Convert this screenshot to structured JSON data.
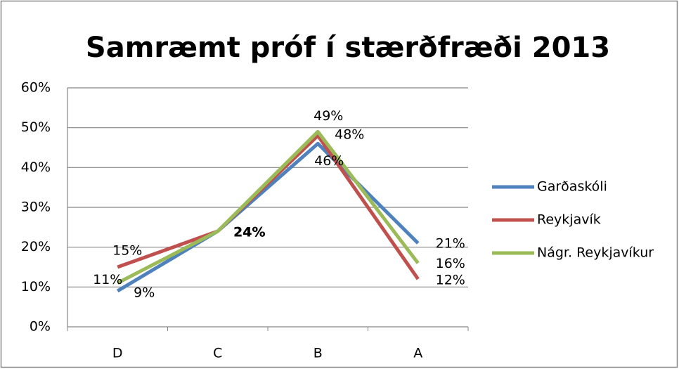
{
  "chart_data": {
    "type": "line",
    "title": "Samræmt próf í stærðfræði 2013",
    "categories": [
      "D",
      "C",
      "B",
      "A"
    ],
    "series": [
      {
        "name": "Garðaskóli",
        "color": "#4f81bd",
        "values": [
          9,
          24,
          46,
          21
        ],
        "value_labels": [
          "9%",
          "24%",
          "46%",
          "21%"
        ]
      },
      {
        "name": "Reykjavík",
        "color": "#c0504d",
        "values": [
          15,
          24,
          48,
          12
        ],
        "value_labels": [
          "15%",
          "24%",
          "48%",
          "12%"
        ]
      },
      {
        "name": "Nágr. Reykjavíkur",
        "color": "#9bbb59",
        "values": [
          11,
          24,
          49,
          16
        ],
        "value_labels": [
          "11%",
          "24%",
          "49%",
          "16%"
        ]
      }
    ],
    "ylim": [
      0,
      60
    ],
    "yticks": [
      {
        "value": 0,
        "label": "0%"
      },
      {
        "value": 10,
        "label": "10%"
      },
      {
        "value": 20,
        "label": "20%"
      },
      {
        "value": 30,
        "label": "30%"
      },
      {
        "value": 40,
        "label": "40%"
      },
      {
        "value": 50,
        "label": "50%"
      },
      {
        "value": 60,
        "label": "60%"
      }
    ],
    "grid": true,
    "legend": "right"
  }
}
